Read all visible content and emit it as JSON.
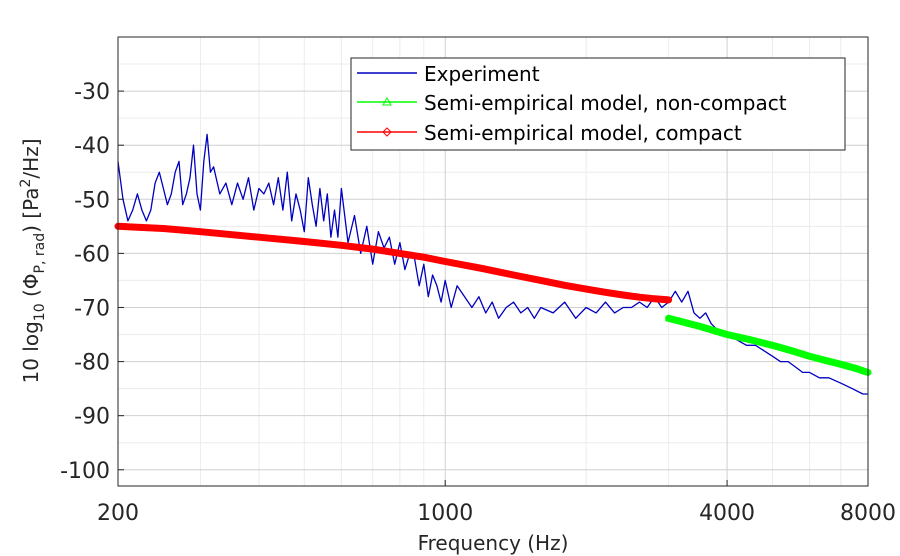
{
  "chart_data": {
    "type": "line",
    "xscale": "log",
    "xlim": [
      200,
      8000
    ],
    "ylim": [
      -103,
      -20
    ],
    "x_ticks": [
      200,
      1000,
      4000,
      8000
    ],
    "x_tick_labels": [
      "200",
      "1000",
      "4000",
      "8000"
    ],
    "y_ticks": [
      -30,
      -40,
      -50,
      -60,
      -70,
      -80,
      -90,
      -100
    ],
    "y_tick_labels": [
      "-30",
      "-40",
      "-50",
      "-60",
      "-70",
      "-80",
      "-90",
      "-100"
    ],
    "xlabel": "Frequency (Hz)",
    "ylabel": {
      "prefix": "10 log",
      "sub10": "10",
      "open": " (Φ",
      "sub_p_rad": "P, rad",
      "close": ")  [Pa",
      "sup2": "2",
      "unit_end": "/Hz]"
    },
    "grid": true,
    "legend_position": "top-right",
    "series": [
      {
        "name": "Experiment",
        "color": "#0000c0",
        "marker": "none",
        "x": [
          200,
          205,
          210,
          215,
          220,
          225,
          230,
          235,
          240,
          245,
          250,
          255,
          260,
          265,
          270,
          275,
          280,
          285,
          290,
          295,
          300,
          305,
          310,
          315,
          320,
          330,
          340,
          350,
          360,
          370,
          380,
          390,
          400,
          410,
          420,
          430,
          440,
          450,
          460,
          470,
          480,
          490,
          500,
          510,
          520,
          530,
          540,
          550,
          560,
          570,
          580,
          590,
          600,
          620,
          640,
          660,
          680,
          700,
          720,
          740,
          760,
          780,
          800,
          820,
          840,
          860,
          880,
          900,
          920,
          940,
          960,
          980,
          1000,
          1030,
          1060,
          1100,
          1140,
          1180,
          1220,
          1260,
          1300,
          1350,
          1400,
          1450,
          1500,
          1550,
          1600,
          1700,
          1800,
          1900,
          2000,
          2100,
          2200,
          2300,
          2400,
          2500,
          2600,
          2700,
          2800,
          2900,
          3000,
          3100,
          3200,
          3300,
          3400,
          3500,
          3600,
          3700,
          3800,
          3900,
          4000,
          4200,
          4400,
          4600,
          4800,
          5000,
          5200,
          5400,
          5600,
          5800,
          6000,
          6300,
          6600,
          7000,
          7400,
          7800,
          8000
        ],
        "y": [
          -43,
          -50,
          -54,
          -52,
          -49,
          -52,
          -54,
          -52,
          -47,
          -45,
          -48,
          -51,
          -49,
          -45,
          -43,
          -51,
          -49,
          -46,
          -40,
          -49,
          -52,
          -43,
          -38,
          -45,
          -44,
          -49,
          -47,
          -51,
          -47,
          -50,
          -46,
          -52,
          -48,
          -49,
          -47,
          -51,
          -46,
          -52,
          -45,
          -54,
          -49,
          -52,
          -56,
          -46,
          -51,
          -55,
          -48,
          -54,
          -49,
          -57,
          -52,
          -57,
          -48,
          -58,
          -53,
          -60,
          -55,
          -62,
          -56,
          -59,
          -57,
          -62,
          -58,
          -63,
          -60,
          -61,
          -66,
          -62,
          -68,
          -64,
          -66,
          -69,
          -65,
          -70,
          -66,
          -68,
          -70,
          -68,
          -71,
          -69,
          -72,
          -70,
          -69,
          -71,
          -70,
          -72,
          -70,
          -71,
          -69,
          -72,
          -70,
          -71,
          -69,
          -71,
          -70,
          -70,
          -69,
          -70,
          -68,
          -70,
          -69,
          -67,
          -69,
          -67,
          -71,
          -72,
          -71,
          -73,
          -74,
          -75,
          -75,
          -76,
          -77,
          -77,
          -78,
          -79,
          -80,
          -80,
          -81,
          -82,
          -82,
          -83,
          -83,
          -84,
          -85,
          -86,
          -86
        ]
      },
      {
        "name": "Semi-empirical model, non-compact",
        "color": "#00ff00",
        "marker": "triangle",
        "x": [
          3000,
          3500,
          4000,
          4500,
          5000,
          5500,
          6000,
          6500,
          7000,
          7500,
          8000
        ],
        "y": [
          -72,
          -73.5,
          -75,
          -76,
          -77,
          -78,
          -79,
          -79.8,
          -80.5,
          -81.2,
          -82
        ]
      },
      {
        "name": "Semi-empirical model, compact",
        "color": "#ff0000",
        "marker": "diamond",
        "x": [
          200,
          250,
          300,
          400,
          500,
          600,
          700,
          800,
          900,
          1000,
          1200,
          1400,
          1600,
          1800,
          2000,
          2200,
          2400,
          2600,
          2800,
          3000
        ],
        "y": [
          -55,
          -55.4,
          -56,
          -57,
          -57.8,
          -58.5,
          -59.2,
          -60,
          -60.7,
          -61.5,
          -62.8,
          -64,
          -65,
          -65.9,
          -66.6,
          -67.2,
          -67.7,
          -68.1,
          -68.4,
          -68.6
        ]
      }
    ]
  }
}
